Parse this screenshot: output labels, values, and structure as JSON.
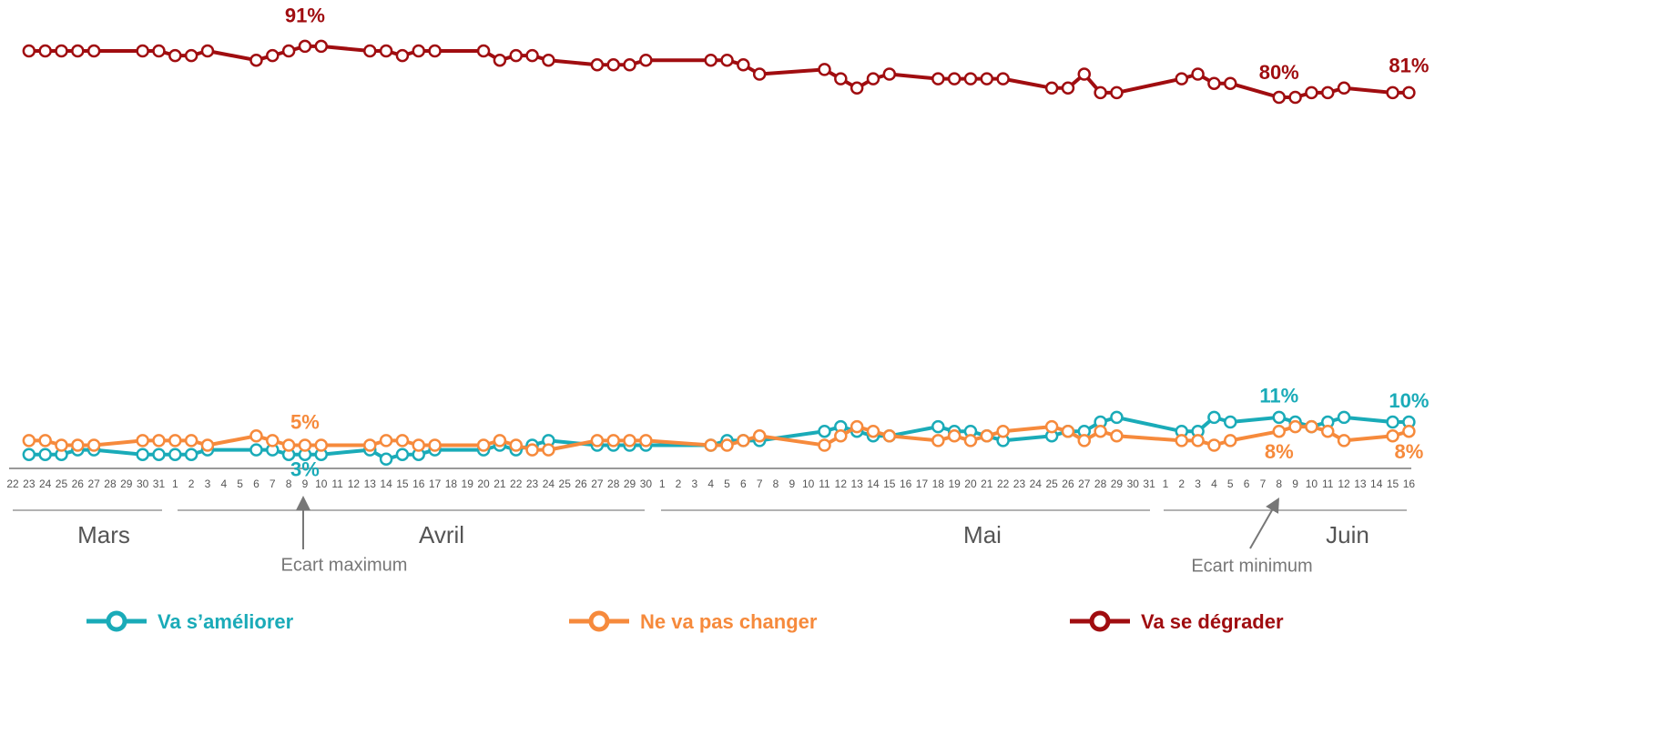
{
  "chart_data": {
    "type": "line",
    "span_gaps": true,
    "categories": [
      "22",
      "23",
      "24",
      "25",
      "26",
      "27",
      "28",
      "29",
      "30",
      "31",
      "1",
      "2",
      "3",
      "4",
      "5",
      "6",
      "7",
      "8",
      "9",
      "10",
      "11",
      "12",
      "13",
      "14",
      "15",
      "16",
      "17",
      "18",
      "19",
      "20",
      "21",
      "22",
      "23",
      "24",
      "25",
      "26",
      "27",
      "28",
      "29",
      "30",
      "1",
      "2",
      "3",
      "4",
      "5",
      "6",
      "7",
      "8",
      "9",
      "10",
      "11",
      "12",
      "13",
      "14",
      "15",
      "16",
      "17",
      "18",
      "19",
      "20",
      "21",
      "22",
      "23",
      "24",
      "25",
      "26",
      "27",
      "28",
      "29",
      "30",
      "31",
      "1",
      "2",
      "3",
      "4",
      "5",
      "6",
      "7",
      "8",
      "9",
      "10",
      "11",
      "12",
      "13",
      "14",
      "15",
      "16"
    ],
    "months": [
      "Mars",
      "Avril",
      "Mai",
      "Juin"
    ],
    "annotations": [
      "Ecart maximum",
      "Ecart minimum"
    ],
    "ylim": [
      0,
      100
    ],
    "series": [
      {
        "name": "Va s’améliorer",
        "color": "#1aabb8",
        "values": [
          null,
          3,
          3,
          3,
          4,
          4,
          null,
          null,
          3,
          3,
          3,
          3,
          4,
          null,
          null,
          4,
          4,
          3,
          3,
          3,
          null,
          null,
          4,
          2,
          3,
          3,
          4,
          null,
          null,
          4,
          5,
          4,
          5,
          6,
          null,
          null,
          5,
          5,
          5,
          5,
          null,
          null,
          null,
          5,
          6,
          6,
          6,
          null,
          null,
          null,
          8,
          9,
          8,
          7,
          7,
          null,
          null,
          9,
          8,
          8,
          7,
          6,
          null,
          null,
          7,
          8,
          8,
          10,
          11,
          null,
          null,
          null,
          8,
          8,
          11,
          10,
          null,
          null,
          11,
          10,
          9,
          10,
          11,
          null,
          null,
          10,
          10
        ],
        "value_labels": [
          null,
          null,
          null,
          null,
          null,
          null,
          null,
          null,
          null,
          null,
          null,
          null,
          null,
          null,
          null,
          null,
          null,
          null,
          "3%",
          null,
          null,
          null,
          null,
          null,
          null,
          null,
          null,
          null,
          null,
          null,
          null,
          null,
          null,
          null,
          null,
          null,
          null,
          null,
          null,
          null,
          null,
          null,
          null,
          null,
          null,
          null,
          null,
          null,
          null,
          null,
          null,
          null,
          null,
          null,
          null,
          null,
          null,
          null,
          null,
          null,
          null,
          null,
          null,
          null,
          null,
          null,
          null,
          null,
          null,
          null,
          null,
          null,
          null,
          null,
          null,
          null,
          null,
          null,
          "11%",
          null,
          null,
          null,
          null,
          null,
          null,
          null,
          "10%"
        ]
      },
      {
        "name": "Ne va pas changer",
        "color": "#f68a3c",
        "values": [
          null,
          6,
          6,
          5,
          5,
          5,
          null,
          null,
          6,
          6,
          6,
          6,
          5,
          null,
          null,
          7,
          6,
          5,
          5,
          5,
          null,
          null,
          5,
          6,
          6,
          5,
          5,
          null,
          null,
          5,
          6,
          5,
          4,
          4,
          null,
          null,
          6,
          6,
          6,
          6,
          null,
          null,
          null,
          5,
          5,
          6,
          7,
          null,
          null,
          null,
          5,
          7,
          9,
          8,
          7,
          null,
          null,
          6,
          7,
          6,
          7,
          8,
          null,
          null,
          9,
          8,
          6,
          8,
          7,
          null,
          null,
          null,
          6,
          6,
          5,
          6,
          null,
          null,
          8,
          9,
          9,
          8,
          6,
          null,
          null,
          7,
          8
        ],
        "value_labels": [
          null,
          null,
          null,
          null,
          null,
          null,
          null,
          null,
          null,
          null,
          null,
          null,
          null,
          null,
          null,
          null,
          null,
          null,
          "5%",
          null,
          null,
          null,
          null,
          null,
          null,
          null,
          null,
          null,
          null,
          null,
          null,
          null,
          null,
          null,
          null,
          null,
          null,
          null,
          null,
          null,
          null,
          null,
          null,
          null,
          null,
          null,
          null,
          null,
          null,
          null,
          null,
          null,
          null,
          null,
          null,
          null,
          null,
          null,
          null,
          null,
          null,
          null,
          null,
          null,
          null,
          null,
          null,
          null,
          null,
          null,
          null,
          null,
          null,
          null,
          null,
          null,
          null,
          null,
          "8%",
          null,
          null,
          null,
          null,
          null,
          null,
          null,
          "8%"
        ]
      },
      {
        "name": "Va se dégrader",
        "color": "#a00d10",
        "values": [
          null,
          90,
          90,
          90,
          90,
          90,
          null,
          null,
          90,
          90,
          89,
          89,
          90,
          null,
          null,
          88,
          89,
          90,
          91,
          91,
          null,
          null,
          90,
          90,
          89,
          90,
          90,
          null,
          null,
          90,
          88,
          89,
          89,
          88,
          null,
          null,
          87,
          87,
          87,
          88,
          null,
          null,
          null,
          88,
          88,
          87,
          85,
          null,
          null,
          null,
          86,
          84,
          82,
          84,
          85,
          null,
          null,
          84,
          84,
          84,
          84,
          84,
          null,
          null,
          82,
          82,
          85,
          81,
          81,
          null,
          null,
          null,
          84,
          85,
          83,
          83,
          null,
          null,
          80,
          80,
          81,
          81,
          82,
          null,
          null,
          81,
          81
        ],
        "value_labels": [
          null,
          null,
          null,
          null,
          null,
          null,
          null,
          null,
          null,
          null,
          null,
          null,
          null,
          null,
          null,
          null,
          null,
          null,
          "91%",
          null,
          null,
          null,
          null,
          null,
          null,
          null,
          null,
          null,
          null,
          null,
          null,
          null,
          null,
          null,
          null,
          null,
          null,
          null,
          null,
          null,
          null,
          null,
          null,
          null,
          null,
          null,
          null,
          null,
          null,
          null,
          null,
          null,
          null,
          null,
          null,
          null,
          null,
          null,
          null,
          null,
          null,
          null,
          null,
          null,
          null,
          null,
          null,
          null,
          null,
          null,
          null,
          null,
          null,
          null,
          null,
          null,
          null,
          null,
          "80%",
          null,
          null,
          null,
          null,
          null,
          null,
          null,
          "81%"
        ]
      }
    ]
  }
}
